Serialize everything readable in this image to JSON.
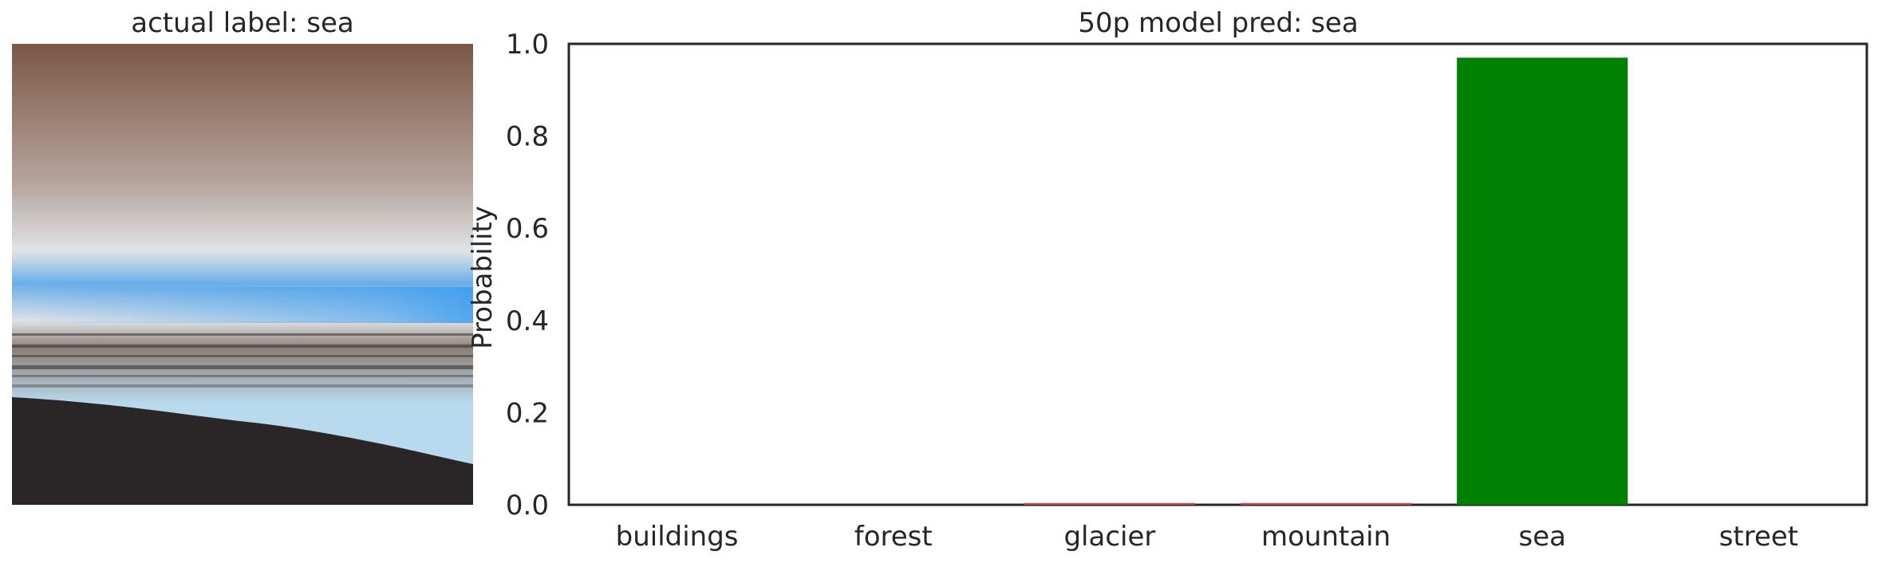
{
  "image_panel": {
    "title": "actual label: sea",
    "subject": "sea",
    "palette": {
      "sky_top": "#7b5746",
      "sky_mid": "#b5a49b",
      "horizon_glow": "#dfe3e6",
      "water_blue": "#6aaee8",
      "water_bright": "#3b9cf0",
      "surf": "#8a7f78",
      "shore_water": "#b9d9ee",
      "sand": "#2a2627"
    }
  },
  "chart_data": {
    "type": "bar",
    "title": "50p model pred: sea",
    "xlabel": "",
    "ylabel": "Probability",
    "ylim": [
      0,
      1
    ],
    "yticks": [
      "0.0",
      "0.2",
      "0.4",
      "0.6",
      "0.8",
      "1.0"
    ],
    "categories": [
      "buildings",
      "forest",
      "glacier",
      "mountain",
      "sea",
      "street"
    ],
    "values": [
      0.0,
      0.0,
      0.004,
      0.004,
      0.97,
      0.0
    ],
    "bar_colors": [
      "#c44e52",
      "#c44e52",
      "#c44e52",
      "#c44e52",
      "#008000",
      "#c44e52"
    ],
    "highlight_color": "#008000",
    "grid": false,
    "legend": "none"
  }
}
